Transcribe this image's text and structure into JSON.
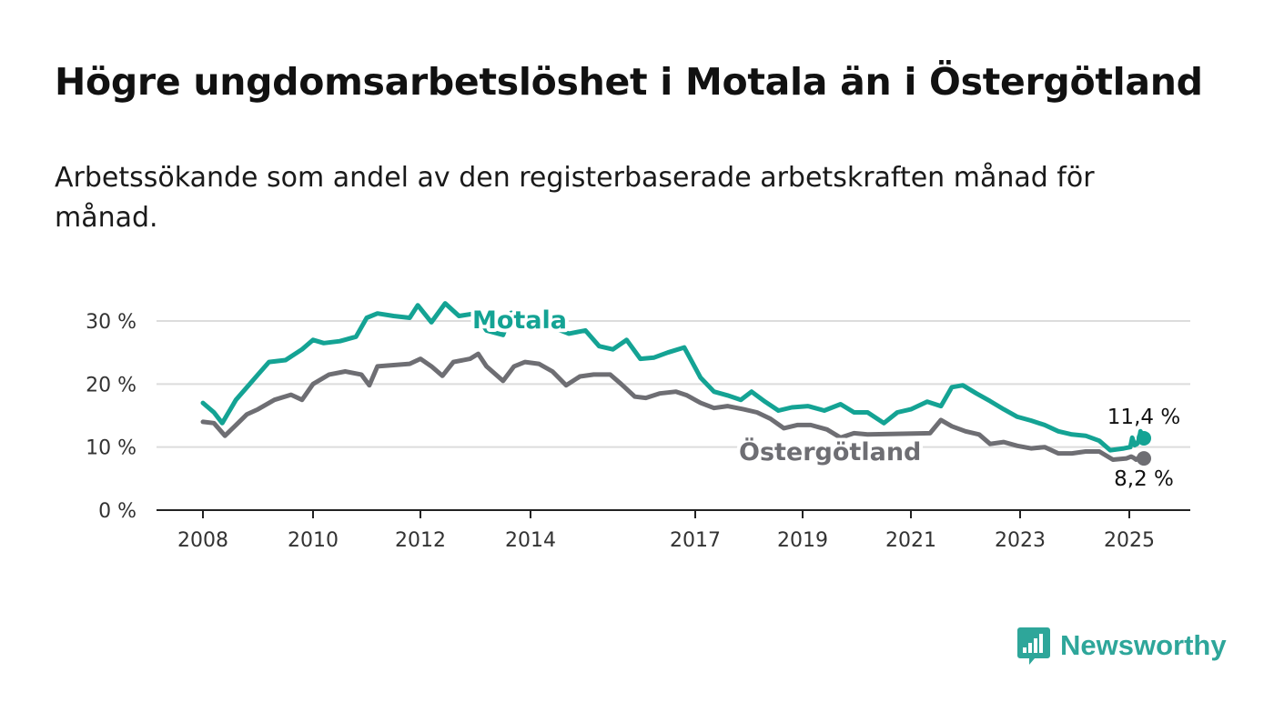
{
  "title": "Högre ungdomsarbetslöshet i Motala än i Östergötland",
  "subtitle": "Arbetssökande som andel av den registerbaserade arbetskraften månad för månad.",
  "brand": {
    "name": "Newsworthy",
    "icon": "bar-chart-speech-bubble-icon"
  },
  "colors": {
    "motala": "#14a394",
    "ostergotland": "#6e6e73",
    "axis": "#222222",
    "grid": "#dcdcdc"
  },
  "chart_data": {
    "type": "line",
    "xlim": [
      2007.5,
      2026.2
    ],
    "ylim": [
      0,
      30
    ],
    "x_ticks": [
      2008,
      2010,
      2012,
      2014,
      2017,
      2019,
      2021,
      2023,
      2025
    ],
    "y_ticks": [
      {
        "value": 0,
        "label": "0 %"
      },
      {
        "value": 10,
        "label": "10 %"
      },
      {
        "value": 20,
        "label": "20 %"
      },
      {
        "value": 30,
        "label": "30 %"
      }
    ],
    "grid": true,
    "series": [
      {
        "name": "Motala",
        "end_label": "11,4 %",
        "points": [
          [
            2008.0,
            17.0
          ],
          [
            2008.2,
            15.5
          ],
          [
            2008.35,
            13.8
          ],
          [
            2008.6,
            17.5
          ],
          [
            2008.8,
            19.5
          ],
          [
            2009.0,
            21.5
          ],
          [
            2009.2,
            23.5
          ],
          [
            2009.5,
            23.8
          ],
          [
            2009.8,
            25.5
          ],
          [
            2010.0,
            27.0
          ],
          [
            2010.2,
            26.5
          ],
          [
            2010.5,
            26.8
          ],
          [
            2010.8,
            27.5
          ],
          [
            2011.0,
            30.5
          ],
          [
            2011.2,
            31.2
          ],
          [
            2011.5,
            30.8
          ],
          [
            2011.8,
            30.5
          ],
          [
            2011.95,
            32.5
          ],
          [
            2012.2,
            29.8
          ],
          [
            2012.45,
            32.8
          ],
          [
            2012.7,
            30.8
          ],
          [
            2013.0,
            31.2
          ],
          [
            2013.2,
            28.5
          ],
          [
            2013.5,
            27.8
          ],
          [
            2013.65,
            31.3
          ],
          [
            2013.85,
            30.2
          ],
          [
            2014.1,
            30.5
          ],
          [
            2014.4,
            29.0
          ],
          [
            2014.7,
            28.0
          ],
          [
            2015.0,
            28.5
          ],
          [
            2015.25,
            26.0
          ],
          [
            2015.5,
            25.5
          ],
          [
            2015.75,
            27.0
          ],
          [
            2016.0,
            24.0
          ],
          [
            2016.25,
            24.2
          ],
          [
            2016.5,
            25.0
          ],
          [
            2016.8,
            25.8
          ],
          [
            2017.1,
            21.0
          ],
          [
            2017.35,
            18.8
          ],
          [
            2017.6,
            18.2
          ],
          [
            2017.85,
            17.5
          ],
          [
            2018.05,
            18.8
          ],
          [
            2018.3,
            17.2
          ],
          [
            2018.55,
            15.8
          ],
          [
            2018.8,
            16.3
          ],
          [
            2019.1,
            16.5
          ],
          [
            2019.4,
            15.8
          ],
          [
            2019.7,
            16.8
          ],
          [
            2019.95,
            15.5
          ],
          [
            2020.2,
            15.5
          ],
          [
            2020.5,
            13.8
          ],
          [
            2020.75,
            15.5
          ],
          [
            2021.0,
            16.0
          ],
          [
            2021.3,
            17.2
          ],
          [
            2021.55,
            16.5
          ],
          [
            2021.75,
            19.5
          ],
          [
            2021.95,
            19.8
          ],
          [
            2022.2,
            18.5
          ],
          [
            2022.45,
            17.3
          ],
          [
            2022.7,
            16.0
          ],
          [
            2022.95,
            14.8
          ],
          [
            2023.2,
            14.2
          ],
          [
            2023.45,
            13.5
          ],
          [
            2023.7,
            12.5
          ],
          [
            2023.95,
            12.0
          ],
          [
            2024.2,
            11.8
          ],
          [
            2024.45,
            11.0
          ],
          [
            2024.65,
            9.5
          ],
          [
            2024.9,
            9.8
          ],
          [
            2025.1,
            10.0
          ],
          [
            2025.3,
            11.5
          ],
          [
            2025.55,
            10.3
          ],
          [
            2025.8,
            10.5
          ],
          [
            2026.0,
            11.2
          ],
          [
            2026.15,
            12.5
          ],
          [
            2026.35,
            11.6
          ],
          [
            2026.5,
            11.4
          ]
        ]
      },
      {
        "name": "Östergötland",
        "end_label": "8,2 %",
        "points": [
          [
            2008.0,
            14.0
          ],
          [
            2008.2,
            13.8
          ],
          [
            2008.4,
            11.8
          ],
          [
            2008.6,
            13.5
          ],
          [
            2008.8,
            15.2
          ],
          [
            2009.0,
            16.0
          ],
          [
            2009.3,
            17.5
          ],
          [
            2009.6,
            18.3
          ],
          [
            2009.8,
            17.5
          ],
          [
            2010.0,
            20.0
          ],
          [
            2010.3,
            21.5
          ],
          [
            2010.6,
            22.0
          ],
          [
            2010.9,
            21.5
          ],
          [
            2011.05,
            19.8
          ],
          [
            2011.2,
            22.8
          ],
          [
            2011.5,
            23.0
          ],
          [
            2011.8,
            23.2
          ],
          [
            2012.0,
            24.0
          ],
          [
            2012.2,
            22.8
          ],
          [
            2012.4,
            21.3
          ],
          [
            2012.6,
            23.5
          ],
          [
            2012.9,
            24.0
          ],
          [
            2013.05,
            24.8
          ],
          [
            2013.2,
            22.8
          ],
          [
            2013.5,
            20.5
          ],
          [
            2013.7,
            22.8
          ],
          [
            2013.9,
            23.5
          ],
          [
            2014.15,
            23.2
          ],
          [
            2014.4,
            22.0
          ],
          [
            2014.65,
            19.8
          ],
          [
            2014.9,
            21.2
          ],
          [
            2015.15,
            21.5
          ],
          [
            2015.45,
            21.5
          ],
          [
            2015.65,
            20.0
          ],
          [
            2015.9,
            18.0
          ],
          [
            2016.1,
            17.8
          ],
          [
            2016.35,
            18.5
          ],
          [
            2016.65,
            18.8
          ],
          [
            2016.85,
            18.2
          ],
          [
            2017.1,
            17.0
          ],
          [
            2017.35,
            16.2
          ],
          [
            2017.6,
            16.5
          ],
          [
            2017.9,
            16.0
          ],
          [
            2018.15,
            15.5
          ],
          [
            2018.4,
            14.5
          ],
          [
            2018.65,
            13.0
          ],
          [
            2018.9,
            13.5
          ],
          [
            2019.15,
            13.5
          ],
          [
            2019.45,
            12.8
          ],
          [
            2019.7,
            11.5
          ],
          [
            2019.95,
            12.2
          ],
          [
            2020.2,
            12.0
          ],
          [
            2021.35,
            12.2
          ],
          [
            2021.55,
            14.3
          ],
          [
            2021.75,
            13.3
          ],
          [
            2022.0,
            12.5
          ],
          [
            2022.25,
            12.0
          ],
          [
            2022.45,
            10.5
          ],
          [
            2022.7,
            10.8
          ],
          [
            2022.95,
            10.2
          ],
          [
            2023.2,
            9.8
          ],
          [
            2023.45,
            10.0
          ],
          [
            2023.7,
            9.0
          ],
          [
            2023.95,
            9.0
          ],
          [
            2024.2,
            9.3
          ],
          [
            2024.45,
            9.3
          ],
          [
            2024.7,
            8.0
          ],
          [
            2024.95,
            8.2
          ],
          [
            2025.2,
            8.5
          ],
          [
            2025.45,
            8.3
          ],
          [
            2025.7,
            8.0
          ],
          [
            2025.95,
            8.3
          ],
          [
            2026.15,
            8.8
          ],
          [
            2026.35,
            8.5
          ],
          [
            2026.5,
            8.2
          ]
        ]
      }
    ]
  }
}
